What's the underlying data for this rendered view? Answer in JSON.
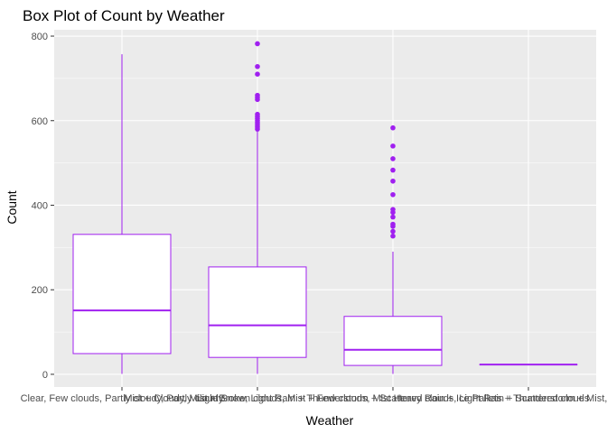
{
  "chart_data": {
    "type": "box",
    "title": "Box Plot of Count by Weather",
    "xlabel": "Weather",
    "ylabel": "Count",
    "ylim": [
      -30,
      815
    ],
    "y_ticks": [
      0,
      200,
      400,
      600,
      800
    ],
    "categories": [
      "Clear, Few clouds, Partly cloudy, Partly cloudy",
      "Mist + Cloudy, Mist + Broken clouds, Mist + Few clouds, Mist",
      "Light Snow, Light Rain + Thunderstorm + Scattered clouds, Light Rain + Scattered clouds",
      "Heavy Rain + Ice Pallets + Thunderstorm + Mist, Snow + Fog"
    ],
    "boxes": [
      {
        "min": 1,
        "q1": 49,
        "median": 151,
        "q3": 331,
        "max": 757,
        "outliers": []
      },
      {
        "min": 1,
        "q1": 40,
        "median": 116,
        "q3": 254,
        "max": 575,
        "outliers": [
          580,
          585,
          590,
          595,
          600,
          605,
          610,
          615,
          650,
          655,
          660,
          710,
          728,
          782
        ]
      },
      {
        "min": 1,
        "q1": 21,
        "median": 58,
        "q3": 137,
        "max": 290,
        "outliers": [
          327,
          338,
          350,
          355,
          372,
          383,
          390,
          425,
          457,
          483,
          510,
          540,
          583
        ]
      },
      {
        "min": 23,
        "q1": 23,
        "median": 23,
        "q3": 23,
        "max": 23,
        "outliers": []
      }
    ],
    "box_color": "#a020f0",
    "panel_background": "#ebebeb",
    "grid": true
  }
}
